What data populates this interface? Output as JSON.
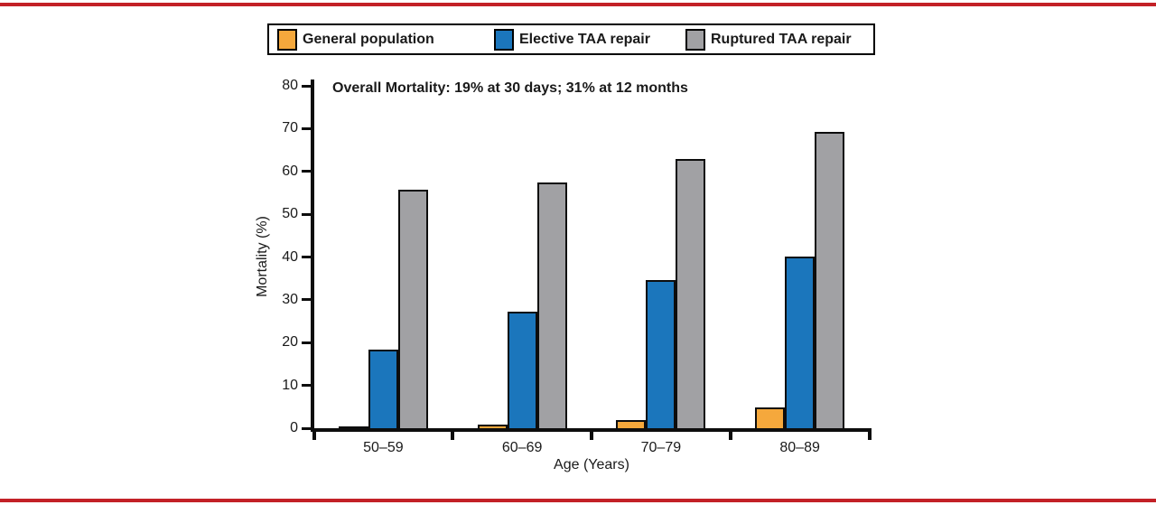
{
  "frame": {
    "rule_color": "#c32127"
  },
  "legend": {
    "items": [
      {
        "label": "General population"
      },
      {
        "label": "Elective TAA repair"
      },
      {
        "label": "Ruptured TAA repair"
      }
    ]
  },
  "chart_data": {
    "type": "bar",
    "annotation": "Overall Mortality: 19% at 30 days; 31% at 12 months",
    "categories": [
      "50–59",
      "60–69",
      "70–79",
      "80–89"
    ],
    "series": [
      {
        "name": "General population",
        "color": "#f5a83c",
        "values": [
          0.5,
          0.8,
          2.0,
          4.8
        ]
      },
      {
        "name": "Elective TAA repair",
        "color": "#1b76bc",
        "values": [
          18.4,
          27.2,
          34.7,
          40.1
        ]
      },
      {
        "name": "Ruptured TAA repair",
        "color": "#a1a1a4",
        "values": [
          55.8,
          57.5,
          62.9,
          69.2
        ]
      }
    ],
    "xlabel": "Age (Years)",
    "ylabel": "Mortality (%)",
    "ylim": [
      0,
      80
    ],
    "yticks": [
      0,
      10,
      20,
      30,
      40,
      50,
      60,
      70,
      80
    ],
    "legend_position": "top",
    "grid": false
  }
}
